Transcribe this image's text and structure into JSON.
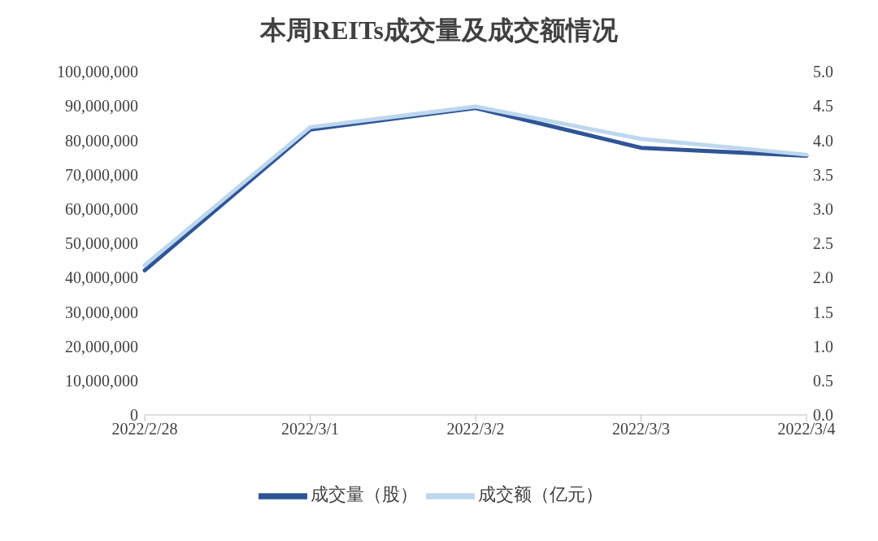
{
  "chart_data": {
    "type": "line",
    "title": "本周REITs成交量及成交额情况",
    "categories": [
      "2022/2/28",
      "2022/3/1",
      "2022/3/2",
      "2022/3/3",
      "2022/3/4"
    ],
    "series": [
      {
        "name": "成交量（股）",
        "color": "#2f5597",
        "values": [
          42100000,
          83100000,
          89400000,
          77800000,
          75500000
        ]
      },
      {
        "name": "成交额（亿元）",
        "color": "#bdd7ee",
        "axis": "y2",
        "values": [
          2.18,
          4.19,
          4.49,
          4.02,
          3.79
        ]
      }
    ],
    "ylim": [
      0,
      100000000
    ],
    "yticks": [
      {
        "value": 0,
        "label": "0"
      },
      {
        "value": 10000000,
        "label": "10,000,000"
      },
      {
        "value": 20000000,
        "label": "20,000,000"
      },
      {
        "value": 30000000,
        "label": "30,000,000"
      },
      {
        "value": 40000000,
        "label": "40,000,000"
      },
      {
        "value": 50000000,
        "label": "50,000,000"
      },
      {
        "value": 60000000,
        "label": "60,000,000"
      },
      {
        "value": 70000000,
        "label": "70,000,000"
      },
      {
        "value": 80000000,
        "label": "80,000,000"
      },
      {
        "value": 90000000,
        "label": "90,000,000"
      },
      {
        "value": 100000000,
        "label": "100,000,000"
      }
    ],
    "y2lim": [
      0,
      5
    ],
    "y2ticks": [
      {
        "value": 0,
        "label": "0.0"
      },
      {
        "value": 0.5,
        "label": "0.5"
      },
      {
        "value": 1,
        "label": "1.0"
      },
      {
        "value": 1.5,
        "label": "1.5"
      },
      {
        "value": 2,
        "label": "2.0"
      },
      {
        "value": 2.5,
        "label": "2.5"
      },
      {
        "value": 3,
        "label": "3.0"
      },
      {
        "value": 3.5,
        "label": "3.5"
      },
      {
        "value": 4,
        "label": "4.0"
      },
      {
        "value": 4.5,
        "label": "4.5"
      },
      {
        "value": 5,
        "label": "5.0"
      }
    ],
    "grid": false,
    "legend": "bottom",
    "marker": "none",
    "line_style": "solid"
  }
}
